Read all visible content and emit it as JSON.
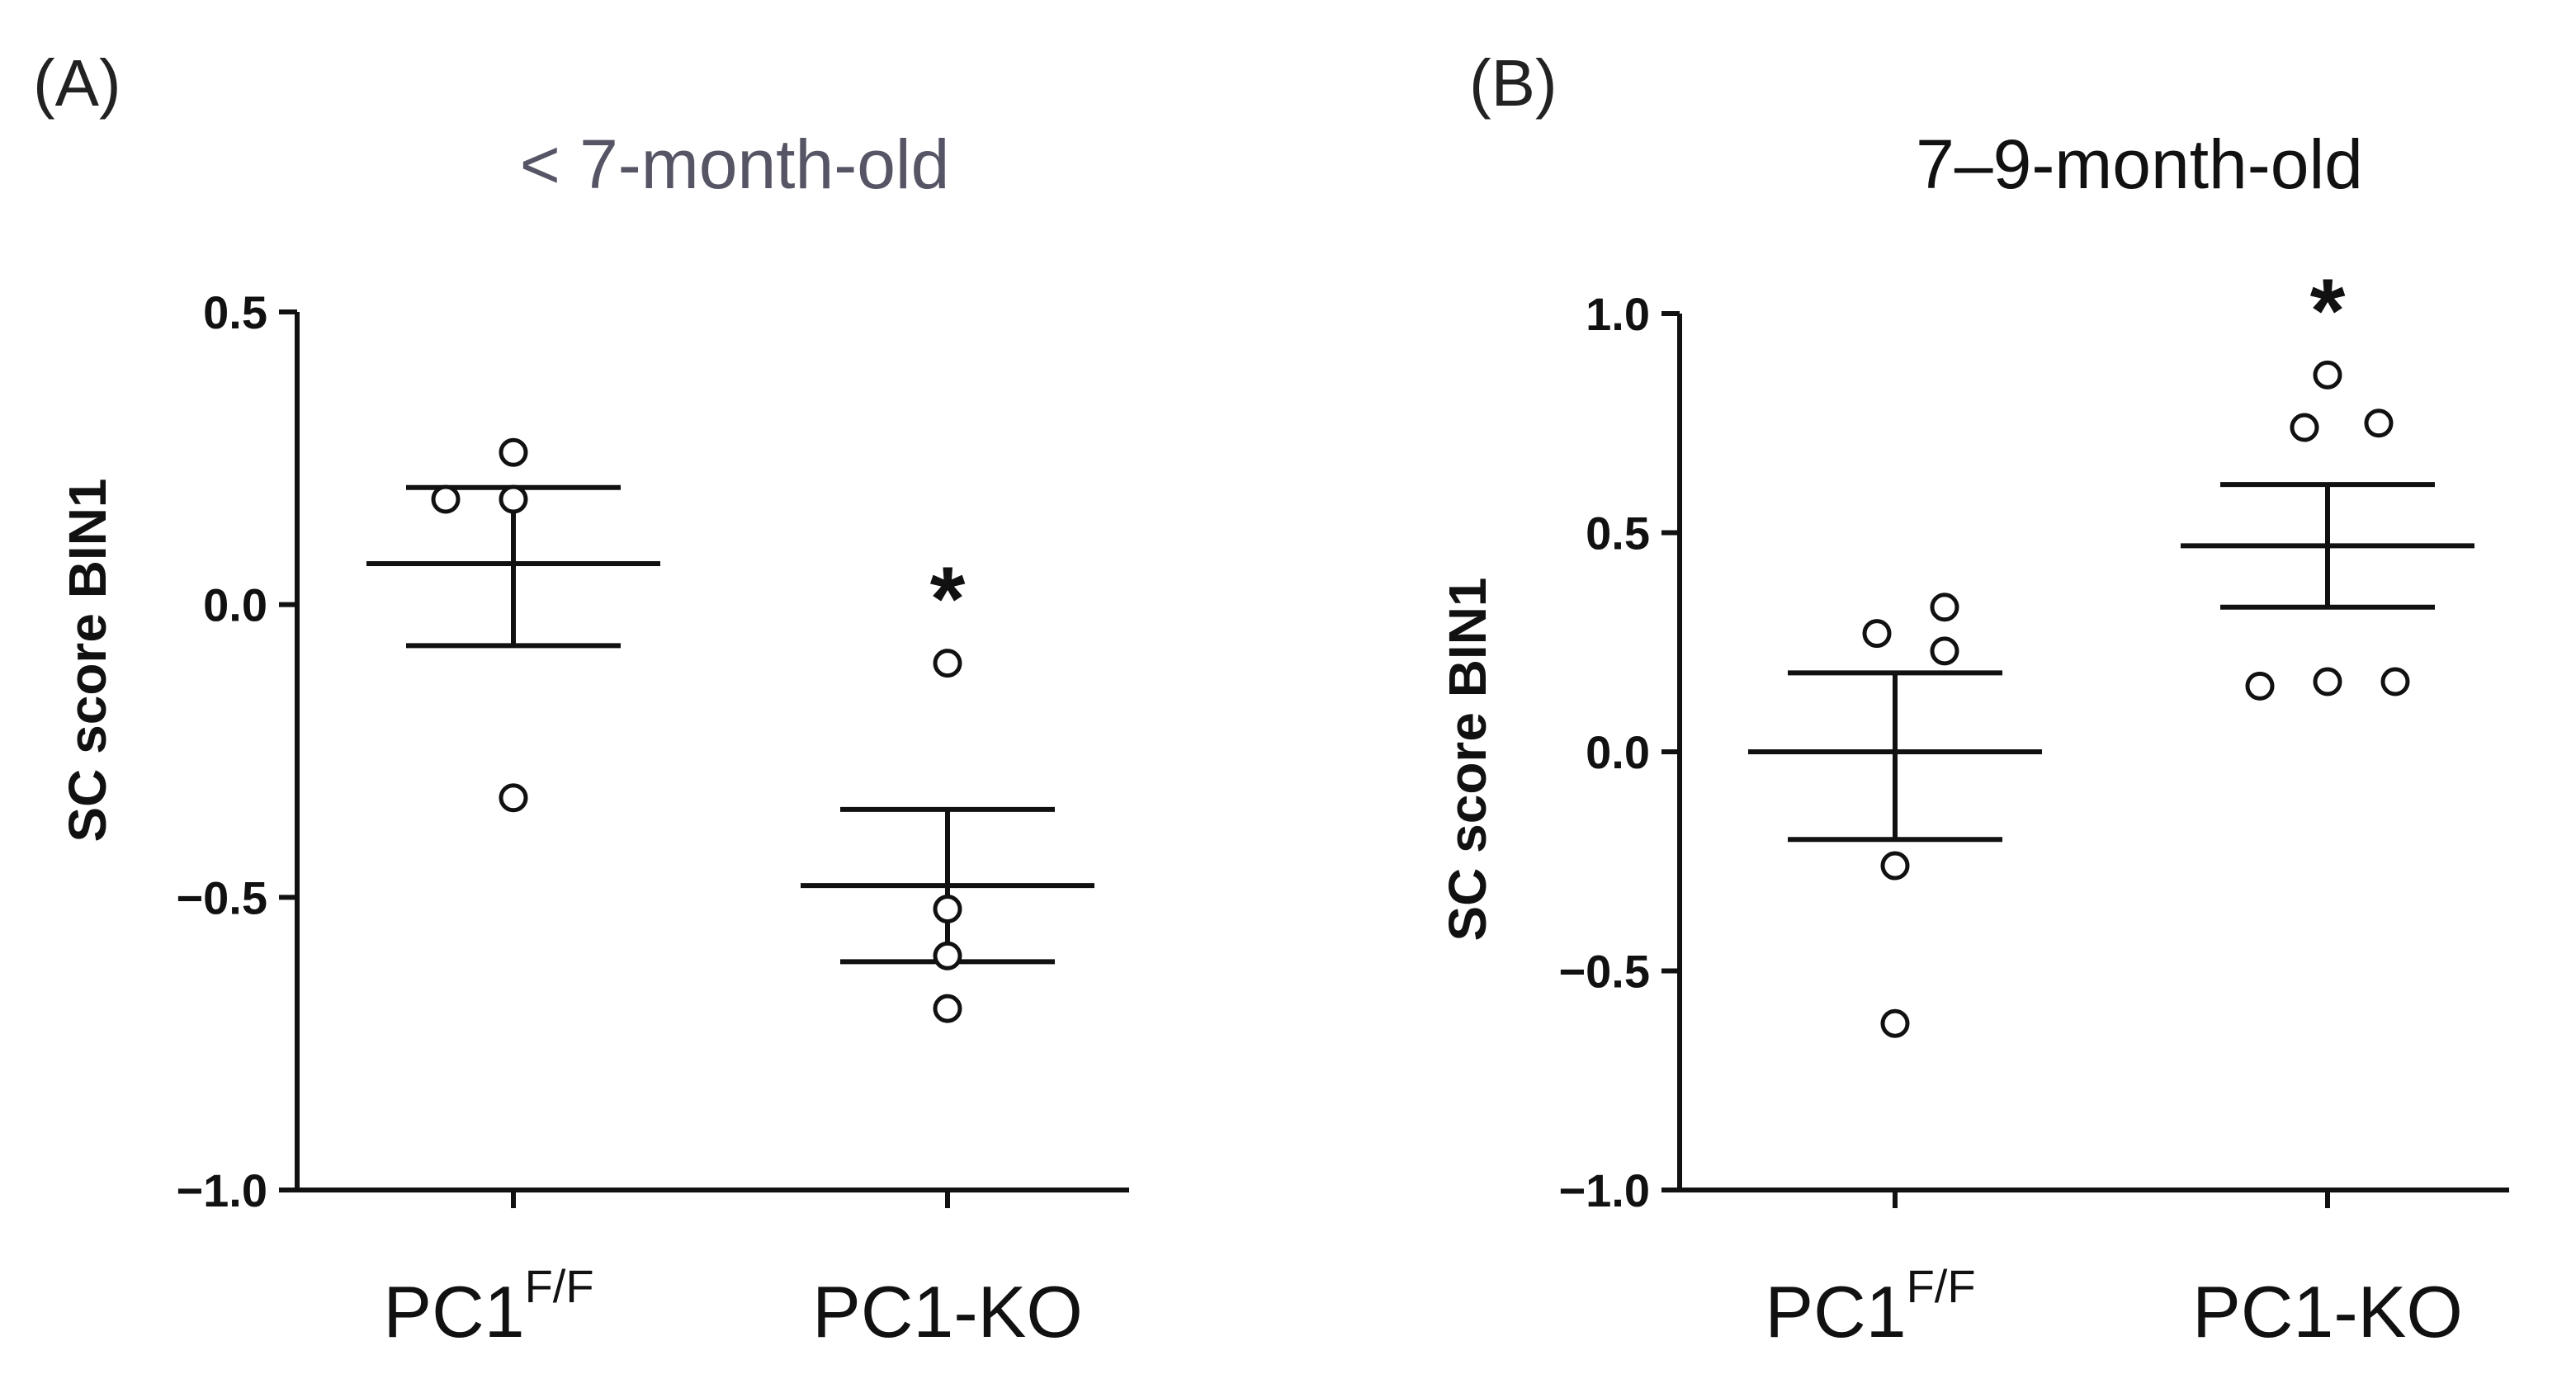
{
  "chart_data": [
    {
      "type": "scatter",
      "panel_label": "(A)",
      "title": "< 7-month-old",
      "title_color": "#555566",
      "ylabel": "SC score BIN1",
      "ylim": [
        -1.0,
        0.5
      ],
      "yticks": [
        "0.5",
        "0.0",
        "−0.5",
        "−1.0"
      ],
      "categories": [
        {
          "name": "PC1",
          "superscript": "F/F",
          "points": [
            0.26,
            0.18,
            0.18,
            -0.33
          ],
          "mean": 0.07,
          "sem_upper": 0.2,
          "sem_lower": -0.07,
          "significance": ""
        },
        {
          "name": "PC1-KO",
          "superscript": "",
          "points": [
            -0.1,
            -0.52,
            -0.6,
            -0.69
          ],
          "mean": -0.48,
          "sem_upper": -0.35,
          "sem_lower": -0.61,
          "significance": "*"
        }
      ]
    },
    {
      "type": "scatter",
      "panel_label": "(B)",
      "title": "7–9-month-old",
      "title_color": "#111111",
      "ylabel": "SC score BIN1",
      "ylim": [
        -1.0,
        1.0
      ],
      "yticks": [
        "1.0",
        "0.5",
        "0.0",
        "−0.5",
        "−1.0"
      ],
      "categories": [
        {
          "name": "PC1",
          "superscript": "F/F",
          "points": [
            0.27,
            0.33,
            0.23,
            -0.26,
            -0.62
          ],
          "mean": 0.0,
          "sem_upper": 0.18,
          "sem_lower": -0.2,
          "significance": ""
        },
        {
          "name": "PC1-KO",
          "superscript": "",
          "points": [
            0.86,
            0.74,
            0.75,
            0.15,
            0.16,
            0.16
          ],
          "mean": 0.47,
          "sem_upper": 0.61,
          "sem_lower": 0.33,
          "significance": "*"
        }
      ]
    }
  ]
}
